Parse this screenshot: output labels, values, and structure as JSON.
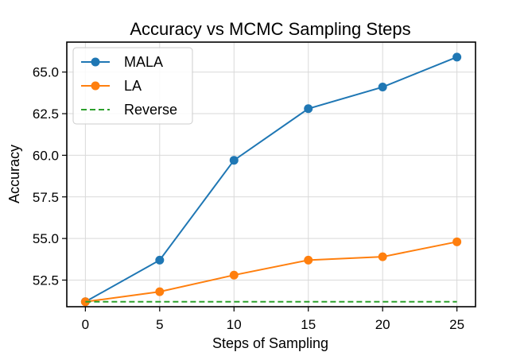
{
  "chart_data": {
    "type": "line",
    "title": "Accuracy vs MCMC Sampling Steps",
    "xlabel": "Steps of Sampling",
    "ylabel": "Accuracy",
    "x": [
      0,
      5,
      10,
      15,
      20,
      25
    ],
    "xticks": [
      "0",
      "5",
      "10",
      "15",
      "20",
      "25"
    ],
    "yticks": [
      "52.5",
      "55.0",
      "57.5",
      "60.0",
      "62.5",
      "65.0"
    ],
    "xlim": [
      -1.25,
      26.25
    ],
    "ylim": [
      50.9,
      66.8
    ],
    "grid": true,
    "legend_position": "top-left",
    "series": [
      {
        "name": "MALA",
        "values": [
          51.2,
          53.7,
          59.7,
          62.8,
          64.1,
          65.9
        ],
        "color": "#1f77b4",
        "style": "solid",
        "marker": "circle"
      },
      {
        "name": "LA",
        "values": [
          51.2,
          51.8,
          52.8,
          53.7,
          53.9,
          54.8
        ],
        "color": "#ff7f0e",
        "style": "solid",
        "marker": "circle"
      },
      {
        "name": "Reverse",
        "values": [
          51.2,
          51.2,
          51.2,
          51.2,
          51.2,
          51.2
        ],
        "color": "#2ca02c",
        "style": "dashed",
        "marker": "none"
      }
    ]
  }
}
